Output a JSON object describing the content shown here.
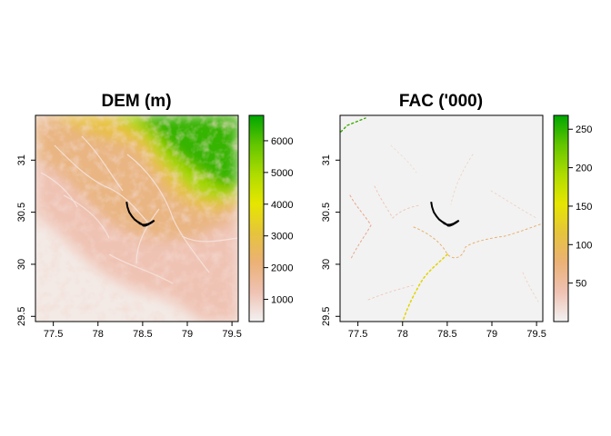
{
  "chart_data": [
    {
      "type": "heatmap",
      "title": "DEM (m)",
      "xlabel": "",
      "ylabel": "",
      "xlim": [
        77.3,
        79.57
      ],
      "ylim": [
        29.45,
        31.43
      ],
      "x_ticks": [
        77.5,
        78,
        78.5,
        79,
        79.5
      ],
      "x_tick_labels": [
        "77.5",
        "78",
        "78.5",
        "79",
        "79.5"
      ],
      "y_ticks": [
        29.5,
        30,
        30.5,
        31
      ],
      "y_tick_labels": [
        "29.5",
        "30",
        "30.5",
        "31"
      ],
      "legend": {
        "min": 300,
        "max": 6800,
        "ticks": [
          1000,
          2000,
          3000,
          4000,
          5000,
          6000
        ],
        "tick_labels": [
          "1000",
          "2000",
          "3000",
          "4000",
          "5000",
          "6000"
        ],
        "colors": [
          "#F2F2F2",
          "#EFC2B3",
          "#ECB176",
          "#E6C43C",
          "#E6E600",
          "#AEDC00",
          "#63C600",
          "#00A600"
        ]
      }
    },
    {
      "type": "heatmap",
      "title": "FAC ('000)",
      "xlabel": "",
      "ylabel": "",
      "xlim": [
        77.3,
        79.57
      ],
      "ylim": [
        29.45,
        31.43
      ],
      "x_ticks": [
        77.5,
        78,
        78.5,
        79,
        79.5
      ],
      "x_tick_labels": [
        "77.5",
        "78",
        "78.5",
        "79",
        "79.5"
      ],
      "y_ticks": [
        29.5,
        30,
        30.5,
        31
      ],
      "y_tick_labels": [
        "29.5",
        "30",
        "30.5",
        "31"
      ],
      "legend": {
        "min": 0,
        "max": 268,
        "ticks": [
          50,
          100,
          150,
          200,
          250
        ],
        "tick_labels": [
          "50",
          "100",
          "150",
          "200",
          "250"
        ],
        "colors": [
          "#F2F2F2",
          "#EFC2B3",
          "#ECB176",
          "#E6C43C",
          "#E6E600",
          "#AEDC00",
          "#63C600",
          "#00A600"
        ]
      }
    }
  ],
  "overlay": {
    "name": "catchment boundary",
    "lon": [
      78.32,
      78.33,
      78.35,
      78.38,
      78.41,
      78.44,
      78.48,
      78.51,
      78.53,
      78.56,
      78.6,
      78.63,
      78.61,
      78.57,
      78.53,
      78.5,
      78.47,
      78.44,
      78.41,
      78.38,
      78.35,
      78.33,
      78.32
    ],
    "lat": [
      30.6,
      30.55,
      30.5,
      30.46,
      30.43,
      30.41,
      30.39,
      30.37,
      30.37,
      30.38,
      30.4,
      30.42,
      30.41,
      30.39,
      30.38,
      30.38,
      30.39,
      30.41,
      30.43,
      30.46,
      30.5,
      30.55,
      30.6
    ]
  }
}
